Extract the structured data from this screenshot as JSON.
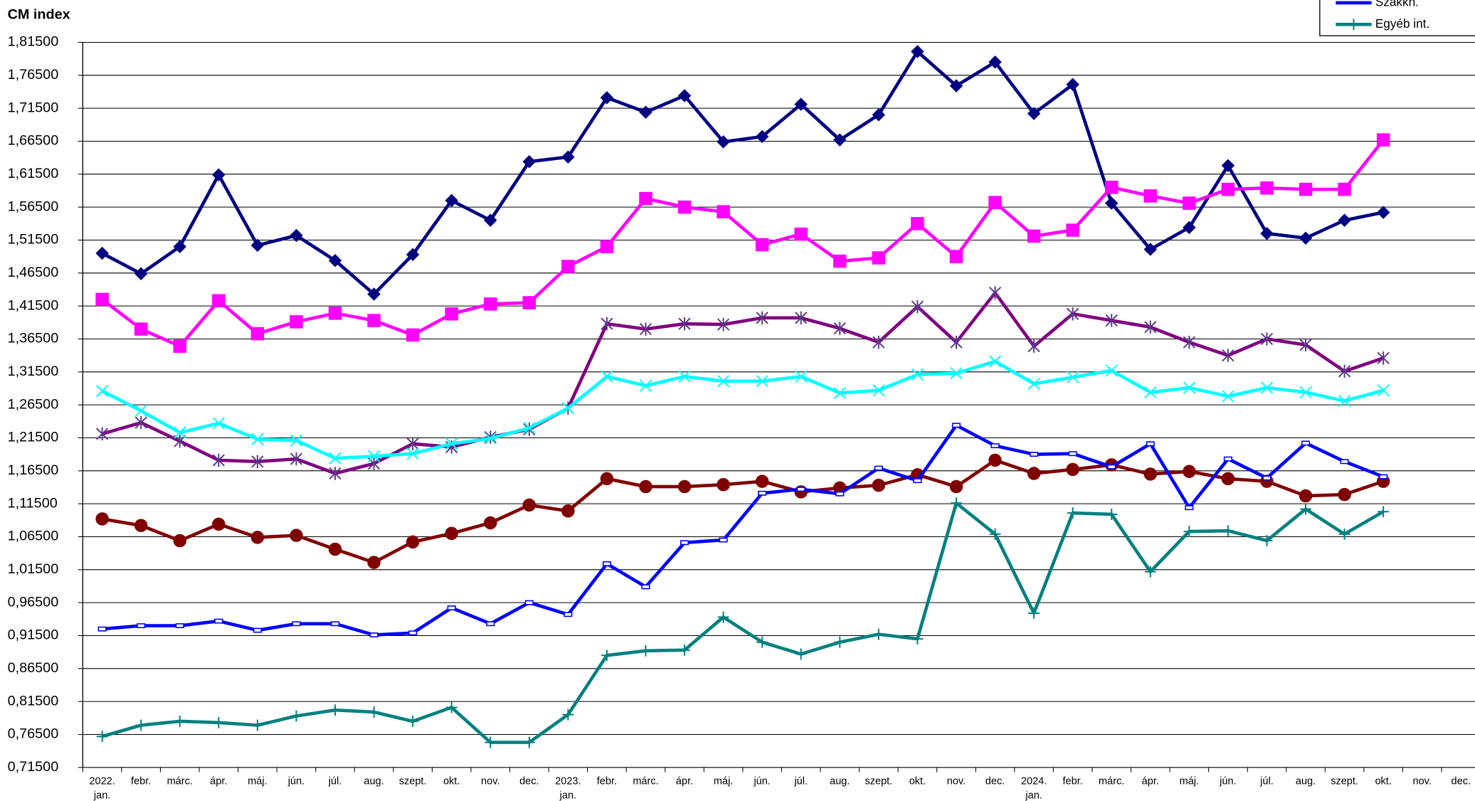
{
  "chart_data": {
    "type": "line",
    "title": "CM index",
    "categories": [
      "2022. jan.",
      "febr.",
      "márc.",
      "ápr.",
      "máj.",
      "jún.",
      "júl.",
      "aug.",
      "szept.",
      "okt.",
      "nov.",
      "dec.",
      "2023. jan.",
      "febr.",
      "márc.",
      "ápr.",
      "máj.",
      "jún.",
      "júl.",
      "aug.",
      "szept.",
      "okt.",
      "nov.",
      "dec.",
      "2024. jan.",
      "febr.",
      "márc.",
      "ápr.",
      "máj.",
      "jún.",
      "júl.",
      "aug.",
      "szept.",
      "okt.",
      "nov.",
      "dec."
    ],
    "ylim": [
      0.715,
      1.815
    ],
    "yticks": [
      {
        "value": 0.715,
        "label": "0,71500"
      },
      {
        "value": 0.765,
        "label": "0,76500"
      },
      {
        "value": 0.815,
        "label": "0,81500"
      },
      {
        "value": 0.865,
        "label": "0,86500"
      },
      {
        "value": 0.915,
        "label": "0,91500"
      },
      {
        "value": 0.965,
        "label": "0,96500"
      },
      {
        "value": 1.015,
        "label": "1,01500"
      },
      {
        "value": 1.065,
        "label": "1,06500"
      },
      {
        "value": 1.115,
        "label": "1,11500"
      },
      {
        "value": 1.165,
        "label": "1,16500"
      },
      {
        "value": 1.215,
        "label": "1,21500"
      },
      {
        "value": 1.265,
        "label": "1,26500"
      },
      {
        "value": 1.315,
        "label": "1,31500"
      },
      {
        "value": 1.365,
        "label": "1,36500"
      },
      {
        "value": 1.415,
        "label": "1,41500"
      },
      {
        "value": 1.465,
        "label": "1,46500"
      },
      {
        "value": 1.515,
        "label": "1,51500"
      },
      {
        "value": 1.565,
        "label": "1,56500"
      },
      {
        "value": 1.615,
        "label": "1,61500"
      },
      {
        "value": 1.665,
        "label": "1,66500"
      },
      {
        "value": 1.715,
        "label": "1,71500"
      },
      {
        "value": 1.765,
        "label": "1,76500"
      },
      {
        "value": 1.815,
        "label": "1,81500"
      }
    ],
    "grid": true,
    "series": [
      {
        "color": "#000080",
        "marker": "diamond",
        "values": [
          1.495,
          1.464,
          1.505,
          1.614,
          1.507,
          1.522,
          1.484,
          1.433,
          1.493,
          1.575,
          1.545,
          1.634,
          1.641,
          1.731,
          1.709,
          1.734,
          1.664,
          1.672,
          1.721,
          1.667,
          1.705,
          1.801,
          1.749,
          1.785,
          1.707,
          1.751,
          1.571,
          1.501,
          1.534,
          1.628,
          1.525,
          1.518,
          1.545,
          1.557,
          null,
          null
        ]
      },
      {
        "color": "#ff00ff",
        "marker": "square",
        "values": [
          1.425,
          1.38,
          1.354,
          1.423,
          1.373,
          1.391,
          1.404,
          1.393,
          1.371,
          1.403,
          1.418,
          1.42,
          1.475,
          1.505,
          1.578,
          1.565,
          1.558,
          1.508,
          1.524,
          1.483,
          1.488,
          1.54,
          1.49,
          1.572,
          1.521,
          1.53,
          1.595,
          1.582,
          1.571,
          1.592,
          1.594,
          1.592,
          1.592,
          1.667,
          null,
          null
        ]
      },
      {
        "color": "#800080",
        "marker": "asterisk",
        "values": [
          1.221,
          1.238,
          1.21,
          1.181,
          1.179,
          1.183,
          1.161,
          1.176,
          1.206,
          1.201,
          1.216,
          1.228,
          1.26,
          1.388,
          1.38,
          1.388,
          1.387,
          1.397,
          1.397,
          1.381,
          1.36,
          1.414,
          1.36,
          1.435,
          1.354,
          1.403,
          1.393,
          1.383,
          1.36,
          1.34,
          1.365,
          1.356,
          1.316,
          1.336,
          null,
          null
        ]
      },
      {
        "color": "#00ffff",
        "marker": "x",
        "values": [
          1.286,
          1.256,
          1.223,
          1.237,
          1.213,
          1.211,
          1.184,
          1.187,
          1.191,
          1.206,
          1.214,
          1.23,
          1.26,
          1.308,
          1.294,
          1.308,
          1.301,
          1.301,
          1.308,
          1.283,
          1.287,
          1.311,
          1.313,
          1.331,
          1.297,
          1.307,
          1.317,
          1.284,
          1.291,
          1.278,
          1.291,
          1.284,
          1.271,
          1.287,
          null,
          null
        ]
      },
      {
        "color": "#800000",
        "marker": "circle",
        "values": [
          1.092,
          1.082,
          1.059,
          1.084,
          1.064,
          1.067,
          1.046,
          1.026,
          1.057,
          1.07,
          1.086,
          1.113,
          1.104,
          1.153,
          1.141,
          1.141,
          1.144,
          1.149,
          1.133,
          1.139,
          1.143,
          1.159,
          1.141,
          1.181,
          1.161,
          1.167,
          1.174,
          1.16,
          1.164,
          1.153,
          1.149,
          1.127,
          1.129,
          1.149,
          null,
          null
        ]
      },
      {
        "name": "Szakkh.",
        "color": "#0000ff",
        "marker": "dash",
        "values": [
          0.925,
          0.93,
          0.93,
          0.937,
          0.923,
          0.933,
          0.933,
          0.916,
          0.919,
          0.957,
          0.933,
          0.965,
          0.947,
          1.024,
          0.989,
          1.056,
          1.06,
          1.131,
          1.137,
          1.13,
          1.169,
          1.15,
          1.234,
          1.203,
          1.19,
          1.191,
          1.171,
          1.206,
          1.109,
          1.183,
          1.154,
          1.207,
          1.179,
          1.156,
          null,
          null
        ]
      },
      {
        "name": "Egyéb int.",
        "color": "#008080",
        "marker": "plus",
        "values": [
          0.762,
          0.779,
          0.785,
          0.783,
          0.779,
          0.793,
          0.802,
          0.799,
          0.785,
          0.806,
          0.753,
          0.753,
          0.795,
          0.885,
          0.892,
          0.893,
          0.943,
          0.905,
          0.887,
          0.905,
          0.917,
          0.91,
          1.116,
          1.069,
          0.949,
          1.101,
          1.099,
          1.012,
          1.073,
          1.074,
          1.059,
          1.107,
          1.069,
          1.103,
          null,
          null
        ]
      }
    ]
  }
}
